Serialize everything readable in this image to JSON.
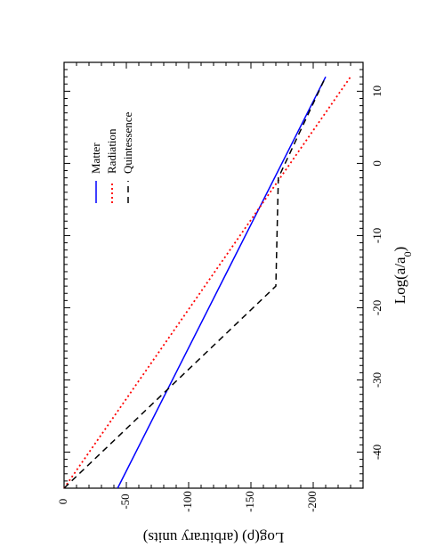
{
  "chart_data": {
    "type": "line",
    "orientation": "rotated-90",
    "title": "",
    "xlabel": "Log(a/a",
    "xlabel_sub": "0",
    "xlabel_close": ")",
    "ylabel": "Log(ρ)   (arbitrary units)",
    "xlim": [
      -45,
      14
    ],
    "ylim": [
      0,
      -240
    ],
    "xticks": [
      -40,
      -30,
      -20,
      -10,
      0,
      10
    ],
    "xtick_labels": [
      "-40",
      "-30",
      "-20",
      "-10",
      "0",
      "10"
    ],
    "yticks": [
      0,
      -50,
      -100,
      -150,
      -200
    ],
    "ytick_labels": [
      "0",
      "-50",
      "-100",
      "-150",
      "-200"
    ],
    "grid": false,
    "legend_position": "top-right",
    "series": [
      {
        "name": "Matter",
        "color": "#0000ff",
        "style": "solid",
        "x": [
          -45,
          12
        ],
        "y": [
          -43,
          -210
        ]
      },
      {
        "name": "Radiation",
        "color": "#ff0000",
        "style": "dotted",
        "x": [
          -45,
          12
        ],
        "y": [
          0,
          -230
        ]
      },
      {
        "name": "Quintessence",
        "color": "#000000",
        "style": "dashed",
        "x": [
          -45,
          -17,
          -2,
          12
        ],
        "y": [
          0,
          -170,
          -172,
          -210
        ]
      }
    ]
  }
}
